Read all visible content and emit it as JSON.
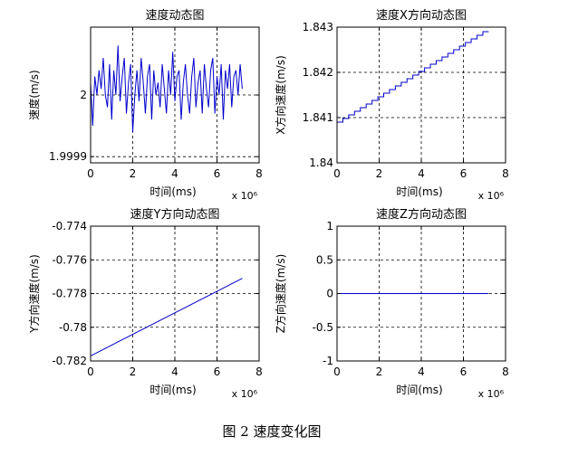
{
  "caption": "图 2  速度变化图",
  "colors": {
    "line": "#0000cc",
    "axis": "#000000",
    "grid": "#000000",
    "background": "#ffffff"
  },
  "chart_data": [
    {
      "type": "line",
      "title": "速度动态图",
      "xlabel": "时间(ms)",
      "ylabel": "速度(m/s)",
      "x_multiplier": "x 10⁶",
      "xlim": [
        0,
        8
      ],
      "ylim": [
        1.99989,
        2.00011
      ],
      "xticks": [
        0,
        2,
        4,
        6,
        8
      ],
      "xtick_labels": [
        "0",
        "2",
        "4",
        "6",
        "8"
      ],
      "yticks": [
        1.9999,
        2.0
      ],
      "ytick_labels": [
        "1.9999",
        "2"
      ],
      "grid": true,
      "series": [
        {
          "x": [
            0.0,
            0.1,
            0.2,
            0.3,
            0.4,
            0.5,
            0.6,
            0.7,
            0.8,
            0.9,
            1.0,
            1.1,
            1.2,
            1.3,
            1.4,
            1.5,
            1.6,
            1.7,
            1.8,
            1.9,
            2.0,
            2.1,
            2.2,
            2.3,
            2.4,
            2.5,
            2.6,
            2.7,
            2.8,
            2.9,
            3.0,
            3.1,
            3.2,
            3.3,
            3.4,
            3.5,
            3.6,
            3.7,
            3.8,
            3.9,
            4.0,
            4.1,
            4.2,
            4.3,
            4.4,
            4.5,
            4.6,
            4.7,
            4.8,
            4.9,
            5.0,
            5.1,
            5.2,
            5.3,
            5.4,
            5.5,
            5.6,
            5.7,
            5.8,
            5.9,
            6.0,
            6.1,
            6.2,
            6.3,
            6.4,
            6.5,
            6.6,
            6.7,
            6.8,
            6.9,
            7.0,
            7.1,
            7.2
          ],
          "y": [
            2.00002,
            1.99995,
            2.00003,
            2.0,
            2.00004,
            2.00001,
            2.00006,
            2.0,
            1.99998,
            2.00005,
            1.99996,
            2.00004,
            2.0,
            2.00008,
            1.99999,
            2.00003,
            2.00006,
            1.99997,
            2.00002,
            2.00005,
            1.99994,
            2.0,
            2.00004,
            1.99999,
            2.00006,
            2.00002,
            1.99997,
            2.00003,
            2.00005,
            1.99996,
            2.00004,
            2.0,
            2.00002,
            1.99998,
            2.00005,
            2.00001,
            1.99997,
            2.00004,
            2.0,
            2.00007,
            1.99999,
            2.00003,
            2.00004,
            1.99996,
            2.00002,
            2.00005,
            2.0,
            1.99997,
            2.00003,
            2.00006,
            1.99998,
            2.00002,
            2.00004,
            1.99997,
            2.00005,
            2.00001,
            1.99998,
            2.00004,
            2.00006,
            1.99997,
            2.00003,
            2.0,
            2.00005,
            1.99996,
            2.00004,
            2.00001,
            2.00005,
            1.99998,
            2.00003,
            2.00004,
            2.0,
            2.00005,
            2.00001
          ]
        }
      ]
    },
    {
      "type": "line",
      "title": "速度X方向动态图",
      "xlabel": "时间(ms)",
      "ylabel": "X方向速度(m/s)",
      "x_multiplier": "x 10⁶",
      "xlim": [
        0,
        8
      ],
      "ylim": [
        1.84,
        1.843
      ],
      "xticks": [
        0,
        2,
        4,
        6,
        8
      ],
      "xtick_labels": [
        "0",
        "2",
        "4",
        "6",
        "8"
      ],
      "yticks": [
        1.84,
        1.841,
        1.842,
        1.843
      ],
      "ytick_labels": [
        "1.84",
        "1.841",
        "1.842",
        "1.843"
      ],
      "grid": true,
      "series": [
        {
          "x": [
            0.0,
            7.2
          ],
          "y": [
            1.8409,
            1.8429
          ],
          "style": "staircase"
        }
      ]
    },
    {
      "type": "line",
      "title": "速度Y方向动态图",
      "xlabel": "时间(ms)",
      "ylabel": "Y方向速度(m/s)",
      "x_multiplier": "x 10⁶",
      "xlim": [
        0,
        8
      ],
      "ylim": [
        -0.782,
        -0.774
      ],
      "xticks": [
        0,
        2,
        4,
        6,
        8
      ],
      "xtick_labels": [
        "0",
        "2",
        "4",
        "6",
        "8"
      ],
      "yticks": [
        -0.782,
        -0.78,
        -0.778,
        -0.776,
        -0.774
      ],
      "ytick_labels": [
        "-0.782",
        "-0.78",
        "-0.778",
        "-0.776",
        "-0.774"
      ],
      "grid": true,
      "series": [
        {
          "x": [
            0.0,
            7.2
          ],
          "y": [
            -0.7817,
            -0.7771
          ]
        }
      ]
    },
    {
      "type": "line",
      "title": "速度Z方向动态图",
      "xlabel": "时间(ms)",
      "ylabel": "Z方向速度(m/s)",
      "x_multiplier": "x 10⁶",
      "xlim": [
        0,
        8
      ],
      "ylim": [
        -1,
        1
      ],
      "xticks": [
        0,
        2,
        4,
        6,
        8
      ],
      "xtick_labels": [
        "0",
        "2",
        "4",
        "6",
        "8"
      ],
      "yticks": [
        -1,
        -0.5,
        0,
        0.5,
        1
      ],
      "ytick_labels": [
        "-1",
        "-0.5",
        "0",
        "0.5",
        "1"
      ],
      "grid": true,
      "series": [
        {
          "x": [
            0.0,
            7.2
          ],
          "y": [
            0,
            0
          ]
        }
      ]
    }
  ]
}
